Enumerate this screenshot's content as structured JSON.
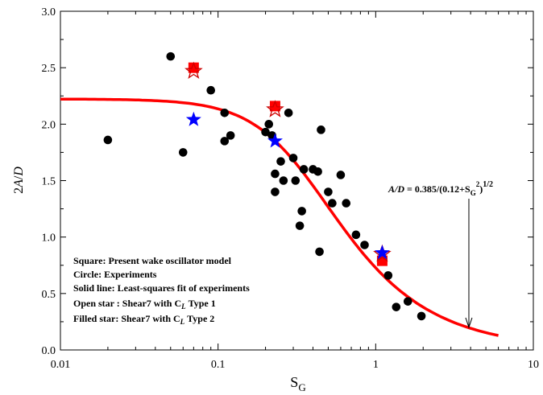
{
  "chart_data": {
    "type": "scatter",
    "xscale": "log",
    "xlim": [
      0.01,
      10
    ],
    "ylim": [
      0.0,
      3.0
    ],
    "xlabel": "S",
    "xlabel_sub": "G",
    "ylabel_parts": [
      "2",
      "A",
      "/",
      "D"
    ],
    "x_ticks": [
      0.01,
      0.1,
      1,
      10
    ],
    "x_tick_labels": [
      "0.01",
      "0.1",
      "1",
      "10"
    ],
    "y_ticks": [
      0,
      0.5,
      1,
      1.5,
      2,
      2.5,
      3
    ],
    "y_tick_labels": [
      "0.0",
      "0.5",
      "1.0",
      "1.5",
      "2.0",
      "2.5",
      "3.0"
    ],
    "grid": false,
    "legend_position": "bottom-left",
    "legend_lines": [
      "Square: Present wake oscillator model",
      "Circle: Experiments",
      "Solid line: Least-squares fit of experiments",
      "Open star : Shear7 with C",
      "Filled star: Shear7 with C"
    ],
    "legend_cl_suffix": [
      "L",
      "Type 1",
      "Type 2"
    ],
    "annotation": {
      "lhs": "A/D",
      "rhs": " = 0.385/(0.12+S",
      "sub": "G",
      "sup1": "2",
      "close": ")",
      "sup2": "1/2",
      "arrow_target": [
        3.9,
        0.2
      ]
    },
    "fit_curve": {
      "name": "Least-squares fit of experiments",
      "formula": "A/D = 0.385/(0.12+SG^2)^(1/2)",
      "x_range": [
        0.01,
        6
      ],
      "color": "#ff0000"
    },
    "series": [
      {
        "name": "Experiments",
        "marker": "circle",
        "color": "#000000",
        "points": [
          [
            0.02,
            1.86
          ],
          [
            0.05,
            2.6
          ],
          [
            0.06,
            1.75
          ],
          [
            0.09,
            2.3
          ],
          [
            0.11,
            2.1
          ],
          [
            0.11,
            1.85
          ],
          [
            0.12,
            1.9
          ],
          [
            0.2,
            1.93
          ],
          [
            0.21,
            2.0
          ],
          [
            0.22,
            1.9
          ],
          [
            0.23,
            1.56
          ],
          [
            0.23,
            1.4
          ],
          [
            0.25,
            1.67
          ],
          [
            0.26,
            1.5
          ],
          [
            0.28,
            2.1
          ],
          [
            0.3,
            1.7
          ],
          [
            0.31,
            1.5
          ],
          [
            0.33,
            1.1
          ],
          [
            0.34,
            1.23
          ],
          [
            0.35,
            1.6
          ],
          [
            0.4,
            1.6
          ],
          [
            0.43,
            1.58
          ],
          [
            0.44,
            0.87
          ],
          [
            0.45,
            1.95
          ],
          [
            0.5,
            1.4
          ],
          [
            0.53,
            1.3
          ],
          [
            0.6,
            1.55
          ],
          [
            0.65,
            1.3
          ],
          [
            0.75,
            1.02
          ],
          [
            0.85,
            0.93
          ],
          [
            1.2,
            0.66
          ],
          [
            1.35,
            0.38
          ],
          [
            1.6,
            0.43
          ],
          [
            1.95,
            0.3
          ]
        ]
      },
      {
        "name": "Present wake oscillator model",
        "marker": "square",
        "color": "#ff0000",
        "points": [
          [
            0.07,
            2.5
          ],
          [
            0.23,
            2.16
          ],
          [
            1.1,
            0.79
          ]
        ]
      },
      {
        "name": "Shear7 with CL Type 1",
        "marker": "open-star",
        "color": "#cc0000",
        "points": [
          [
            0.07,
            2.47
          ],
          [
            0.23,
            2.13
          ],
          [
            1.1,
            0.85
          ]
        ]
      },
      {
        "name": "Shear7 with CL Type 2",
        "marker": "filled-star",
        "color": "#0000ff",
        "points": [
          [
            0.07,
            2.04
          ],
          [
            0.23,
            1.85
          ],
          [
            1.1,
            0.86
          ]
        ]
      }
    ]
  }
}
